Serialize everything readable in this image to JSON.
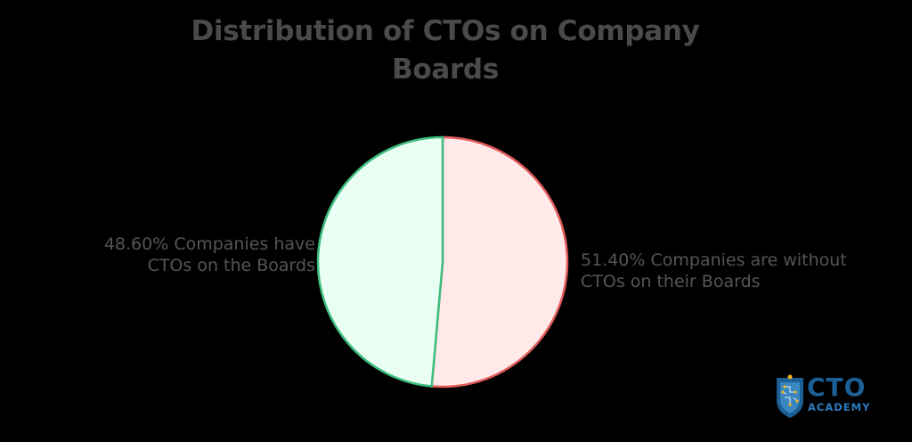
{
  "chart_data": {
    "type": "pie",
    "title": "Distribution of CTOs on Company Boards",
    "title_lines": [
      "Distribution of CTOs on Company",
      "Boards"
    ],
    "categories": [
      "Companies are without CTOs on their Boards",
      "Companies have CTOs on the Boards"
    ],
    "values": [
      51.4,
      48.6
    ],
    "unit": "%",
    "colors": {
      "without": {
        "fill": "#ffe9e9",
        "stroke": "#e05a5a"
      },
      "with": {
        "fill": "#e9fff3",
        "stroke": "#3dbd7d"
      }
    },
    "labels": {
      "with": [
        "48.60% Companies have",
        "CTOs on the Boards"
      ],
      "without": [
        "51.40% Companies are without",
        "CTOs on their Boards"
      ]
    },
    "legend": "none (direct labels)"
  },
  "logo": {
    "main": "CTO",
    "sub": "ACADEMY",
    "color": "#1b5f94"
  }
}
